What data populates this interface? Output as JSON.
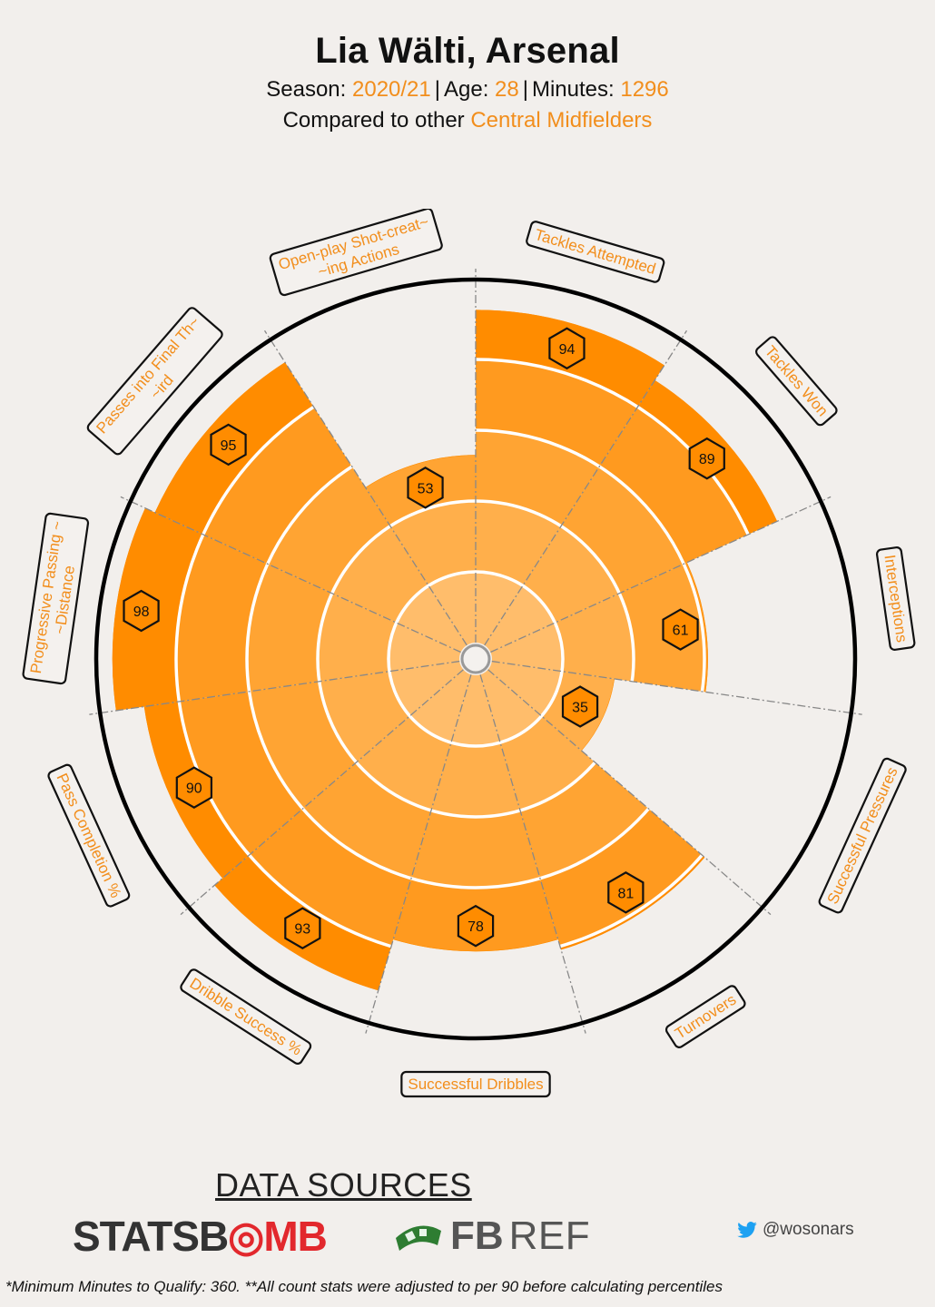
{
  "header": {
    "title": "Lia Wälti, Arsenal",
    "season_label": "Season:",
    "season": "2020/21",
    "age_label": "Age:",
    "age": "28",
    "minutes_label": "Minutes:",
    "minutes": "1296",
    "compared_label": "Compared to other",
    "position_group": "Central Midfielders"
  },
  "colors": {
    "accent": "#f28e1c",
    "ring_outer": "#ff8c00",
    "ring_2": "#ff9a1f",
    "ring_3": "#ffa433",
    "ring_4": "#ffaf4b",
    "ring_inner": "#ffbd6b",
    "background": "#f2efec"
  },
  "chart_data": {
    "type": "radar-percentile",
    "scale_max": 100,
    "rings": [
      20,
      40,
      60,
      80,
      100
    ],
    "metrics": [
      {
        "label": "Tackles Attempted",
        "value": 94
      },
      {
        "label": "Tackles Won",
        "value": 89
      },
      {
        "label": "Interceptions",
        "value": 61
      },
      {
        "label": "Successful Pressures",
        "value": 35
      },
      {
        "label": "Turnovers",
        "value": 81
      },
      {
        "label": "Successful Dribbles",
        "value": 78
      },
      {
        "label": "Dribble Success %",
        "value": 93
      },
      {
        "label": "Pass Completion %",
        "value": 90
      },
      {
        "label": "Progressive Passing ~\n~Distance",
        "value": 98
      },
      {
        "label": "Passes into Final Th~\n~ird",
        "value": 95
      },
      {
        "label": "Open-play Shot-creat~\n~ing Actions",
        "value": 53
      }
    ]
  },
  "footer": {
    "sources_label": "DATA SOURCES",
    "statsbomb_a": "STATSB",
    "statsbomb_b": "MB",
    "fbref_a": "FB",
    "fbref_b": "REF",
    "twitter_handle": "@wosonars",
    "footnote": "*Minimum Minutes to Qualify: 360. **All count stats were adjusted to per 90 before calculating percentiles"
  }
}
